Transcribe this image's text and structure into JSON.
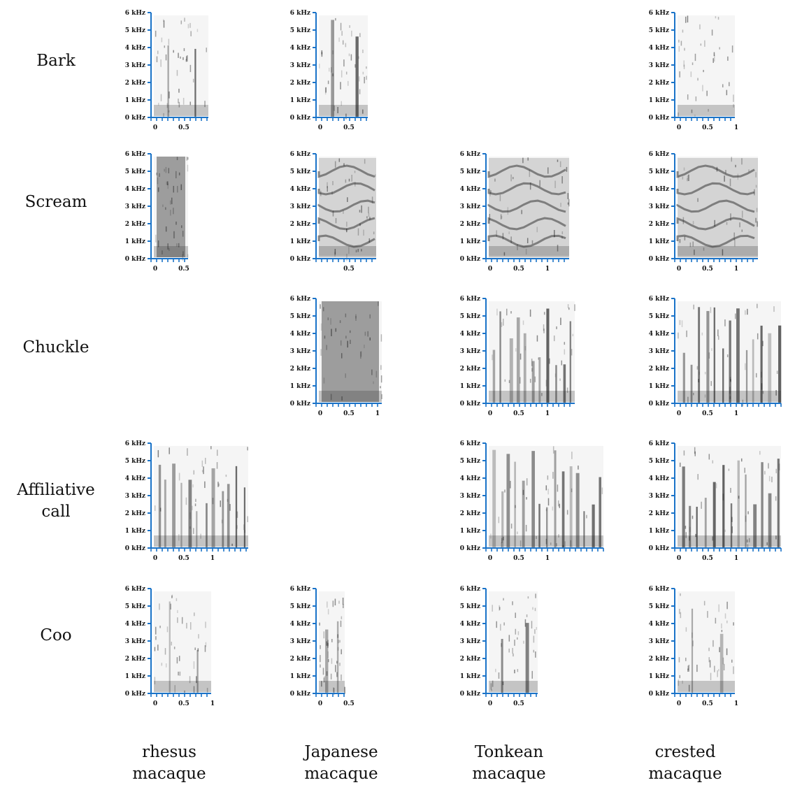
{
  "row_labels": [
    {
      "line1": "Bark",
      "line2": ""
    },
    {
      "line1": "Scream",
      "line2": ""
    },
    {
      "line1": "Chuckle",
      "line2": ""
    },
    {
      "line1": "Affiliative",
      "line2": "call"
    },
    {
      "line1": "Coo",
      "line2": ""
    }
  ],
  "column_labels": [
    {
      "line1": "rhesus",
      "line2": "macaque"
    },
    {
      "line1": "Japanese",
      "line2": "macaque"
    },
    {
      "line1": "Tonkean",
      "line2": "macaque"
    },
    {
      "line1": "crested",
      "line2": "macaque"
    }
  ],
  "frequency_ticks": [
    "0 kHz",
    "1 kHz",
    "2 kHz",
    "3 kHz",
    "4 kHz",
    "5 kHz",
    "6 kHz"
  ],
  "accent_color": "#1a73c8",
  "panels": [
    {
      "row": 0,
      "col": 0,
      "time_ticks": [
        "0",
        "0.5"
      ],
      "duration": 0.95,
      "pattern": "bark"
    },
    {
      "row": 0,
      "col": 1,
      "time_ticks": [
        "0",
        "0.5"
      ],
      "duration": 0.85,
      "pattern": "bark"
    },
    {
      "row": 0,
      "col": 3,
      "time_ticks": [
        "0",
        "0.5",
        "1"
      ],
      "duration": 1.0,
      "pattern": "noise"
    },
    {
      "row": 1,
      "col": 0,
      "time_ticks": [
        "0",
        "0.5"
      ],
      "duration": 0.6,
      "pattern": "dense"
    },
    {
      "row": 1,
      "col": 1,
      "time_ticks": [
        "0.5"
      ],
      "duration": 1.0,
      "pattern": "harmonic"
    },
    {
      "row": 1,
      "col": 2,
      "time_ticks": [
        "0",
        "0.5",
        "1"
      ],
      "duration": 1.4,
      "pattern": "harmonic"
    },
    {
      "row": 1,
      "col": 3,
      "time_ticks": [
        "0",
        "0.5",
        "1"
      ],
      "duration": 1.4,
      "pattern": "harmonic"
    },
    {
      "row": 2,
      "col": 1,
      "time_ticks": [
        "0",
        "0.5",
        "1"
      ],
      "duration": 1.1,
      "pattern": "dense"
    },
    {
      "row": 2,
      "col": 2,
      "time_ticks": [
        "0",
        "0.5",
        "1"
      ],
      "duration": 1.5,
      "pattern": "pulses"
    },
    {
      "row": 2,
      "col": 3,
      "time_ticks": [
        "0",
        "0.5",
        "1"
      ],
      "duration": 1.8,
      "pattern": "pulses"
    },
    {
      "row": 3,
      "col": 0,
      "time_ticks": [
        "0",
        "0.5",
        "1"
      ],
      "duration": 1.65,
      "pattern": "pulses"
    },
    {
      "row": 3,
      "col": 2,
      "time_ticks": [
        "0",
        "0.5",
        "1"
      ],
      "duration": 2.0,
      "pattern": "pulses"
    },
    {
      "row": 3,
      "col": 3,
      "time_ticks": [
        "0",
        "0.5",
        "1"
      ],
      "duration": 1.8,
      "pattern": "pulses"
    },
    {
      "row": 4,
      "col": 0,
      "time_ticks": [
        "0",
        "0.5",
        "1"
      ],
      "duration": 1.0,
      "pattern": "coo"
    },
    {
      "row": 4,
      "col": 1,
      "time_ticks": [
        "0",
        "0.5"
      ],
      "duration": 0.45,
      "pattern": "coo"
    },
    {
      "row": 4,
      "col": 2,
      "time_ticks": [
        "0",
        "0.5"
      ],
      "duration": 0.85,
      "pattern": "coo"
    },
    {
      "row": 4,
      "col": 3,
      "time_ticks": [
        "0",
        "0.5",
        "1"
      ],
      "duration": 1.0,
      "pattern": "coo"
    }
  ]
}
